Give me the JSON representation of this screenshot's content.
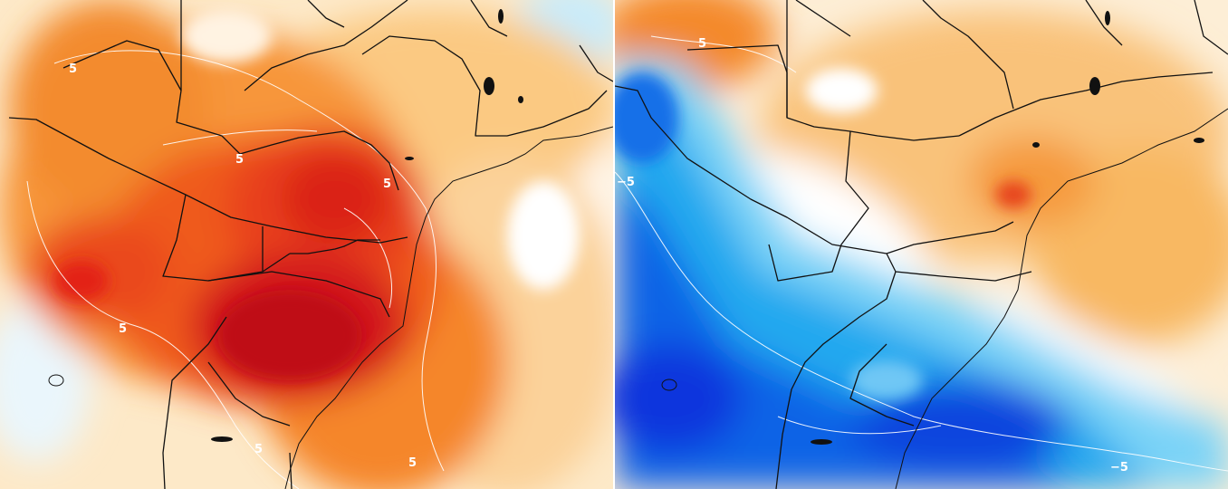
{
  "panels": [
    {
      "id": "left",
      "theme": "warm",
      "contour_labels": [
        "5",
        "5",
        "5",
        "5",
        "5",
        "5"
      ]
    },
    {
      "id": "right",
      "theme": "mixed",
      "contour_labels": [
        "5",
        "−5",
        "−5"
      ]
    }
  ],
  "colors": {
    "warm_light": "#fde3b5",
    "warm_mid": "#f7a54a",
    "warm_orange": "#f5821f",
    "warm_red": "#e8331a",
    "warm_dark": "#c40e0e",
    "cold_light": "#bfe9fb",
    "cold_mid": "#3fb7f2",
    "cold_blue": "#1a7ee8",
    "cold_dark": "#0a3ee0",
    "boundary": "#111111",
    "contour_line": "#ffffff"
  }
}
